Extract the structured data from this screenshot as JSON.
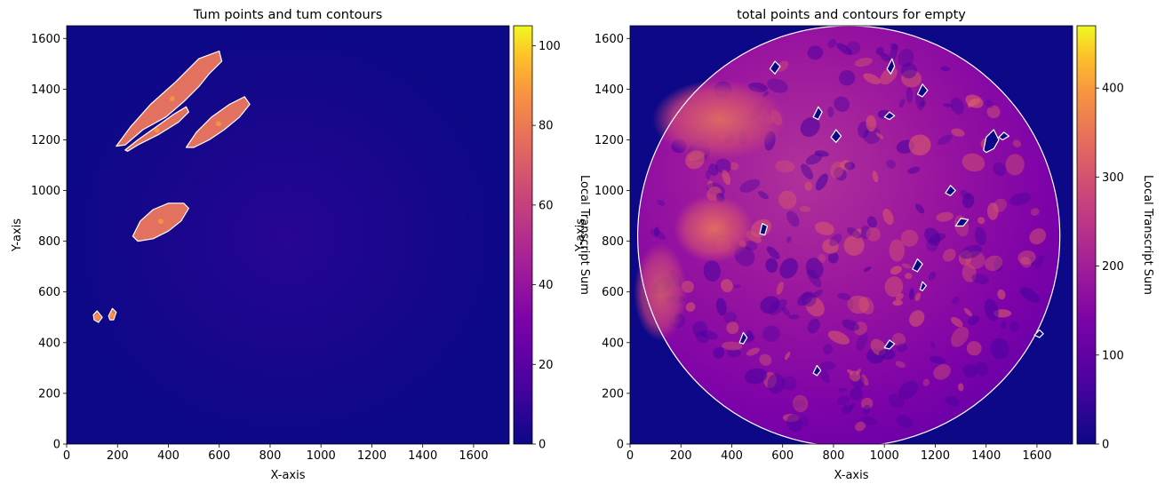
{
  "chart_data": [
    {
      "type": "heatmap",
      "title": "Tum points and tum contours",
      "xlabel": "X-axis",
      "ylabel": "Y-axis",
      "xlim": [
        0,
        1740
      ],
      "ylim": [
        0,
        1650
      ],
      "x_ticks": [
        0,
        200,
        400,
        600,
        800,
        1000,
        1200,
        1400,
        1600
      ],
      "y_ticks": [
        0,
        200,
        400,
        600,
        800,
        1000,
        1200,
        1400,
        1600
      ],
      "colormap": "plasma",
      "background_color": "#0d0887",
      "contour_color": "#ffffff",
      "colorbar": {
        "label": "Local Transcript Sum",
        "range": [
          0,
          105
        ],
        "ticks": [
          0,
          20,
          40,
          60,
          80,
          100
        ]
      },
      "contour_regions": [
        {
          "polygon": [
            [
              195,
              1175
            ],
            [
              250,
              1250
            ],
            [
              330,
              1340
            ],
            [
              430,
              1430
            ],
            [
              520,
              1520
            ],
            [
              600,
              1550
            ],
            [
              610,
              1510
            ],
            [
              560,
              1460
            ],
            [
              520,
              1410
            ],
            [
              460,
              1350
            ],
            [
              390,
              1290
            ],
            [
              300,
              1240
            ],
            [
              230,
              1180
            ]
          ]
        },
        {
          "polygon": [
            [
              230,
              1160
            ],
            [
              280,
              1200
            ],
            [
              350,
              1250
            ],
            [
              420,
              1300
            ],
            [
              470,
              1330
            ],
            [
              480,
              1310
            ],
            [
              440,
              1270
            ],
            [
              360,
              1220
            ],
            [
              280,
              1180
            ],
            [
              240,
              1155
            ]
          ]
        },
        {
          "polygon": [
            [
              470,
              1170
            ],
            [
              510,
              1230
            ],
            [
              570,
              1290
            ],
            [
              640,
              1340
            ],
            [
              700,
              1370
            ],
            [
              720,
              1340
            ],
            [
              680,
              1290
            ],
            [
              620,
              1240
            ],
            [
              560,
              1200
            ],
            [
              500,
              1170
            ]
          ]
        },
        {
          "polygon": [
            [
              260,
              820
            ],
            [
              290,
              880
            ],
            [
              340,
              925
            ],
            [
              400,
              950
            ],
            [
              460,
              950
            ],
            [
              480,
              930
            ],
            [
              450,
              880
            ],
            [
              400,
              840
            ],
            [
              340,
              810
            ],
            [
              280,
              800
            ]
          ]
        },
        {
          "polygon": [
            [
              105,
              510
            ],
            [
              120,
              525
            ],
            [
              140,
              500
            ],
            [
              125,
              480
            ],
            [
              108,
              490
            ]
          ]
        },
        {
          "polygon": [
            [
              165,
              505
            ],
            [
              180,
              535
            ],
            [
              195,
              520
            ],
            [
              185,
              490
            ],
            [
              170,
              490
            ]
          ]
        }
      ]
    },
    {
      "type": "heatmap",
      "title": "total points and contours for empty",
      "xlabel": "X-axis",
      "ylabel": "Y-axis",
      "xlim": [
        0,
        1740
      ],
      "ylim": [
        0,
        1650
      ],
      "x_ticks": [
        0,
        200,
        400,
        600,
        800,
        1000,
        1200,
        1400,
        1600
      ],
      "y_ticks": [
        0,
        200,
        400,
        600,
        800,
        1000,
        1200,
        1400,
        1600
      ],
      "colormap": "plasma",
      "background_color": "#0d0887",
      "contour_color": "#ffffff",
      "colorbar": {
        "label": "Local Transcript Sum",
        "range": [
          0,
          470
        ],
        "ticks": [
          0,
          100,
          200,
          300,
          400
        ]
      },
      "tissue_region": {
        "center": [
          860,
          820
        ],
        "radius": 830
      },
      "contour_regions": [
        {
          "polygon": [
            [
              550,
              1480
            ],
            [
              570,
              1510
            ],
            [
              590,
              1490
            ],
            [
              570,
              1460
            ]
          ]
        },
        {
          "polygon": [
            [
              1010,
              1480
            ],
            [
              1030,
              1520
            ],
            [
              1040,
              1490
            ],
            [
              1025,
              1460
            ]
          ]
        },
        {
          "polygon": [
            [
              1130,
              1380
            ],
            [
              1150,
              1420
            ],
            [
              1170,
              1395
            ],
            [
              1150,
              1370
            ]
          ]
        },
        {
          "polygon": [
            [
              720,
              1290
            ],
            [
              740,
              1330
            ],
            [
              755,
              1310
            ],
            [
              740,
              1280
            ]
          ]
        },
        {
          "polygon": [
            [
              1000,
              1290
            ],
            [
              1020,
              1310
            ],
            [
              1040,
              1295
            ],
            [
              1020,
              1280
            ]
          ]
        },
        {
          "polygon": [
            [
              790,
              1210
            ],
            [
              810,
              1240
            ],
            [
              830,
              1215
            ],
            [
              810,
              1190
            ]
          ]
        },
        {
          "polygon": [
            [
              1390,
              1160
            ],
            [
              1400,
              1210
            ],
            [
              1430,
              1240
            ],
            [
              1450,
              1200
            ],
            [
              1430,
              1165
            ],
            [
              1400,
              1150
            ]
          ]
        },
        {
          "polygon": [
            [
              1450,
              1210
            ],
            [
              1470,
              1230
            ],
            [
              1490,
              1215
            ],
            [
              1465,
              1200
            ]
          ]
        },
        {
          "polygon": [
            [
              1240,
              990
            ],
            [
              1260,
              1020
            ],
            [
              1280,
              1000
            ],
            [
              1260,
              980
            ]
          ]
        },
        {
          "polygon": [
            [
              1280,
              860
            ],
            [
              1300,
              890
            ],
            [
              1330,
              885
            ],
            [
              1310,
              860
            ]
          ]
        },
        {
          "polygon": [
            [
              510,
              830
            ],
            [
              520,
              870
            ],
            [
              540,
              860
            ],
            [
              530,
              825
            ]
          ]
        },
        {
          "polygon": [
            [
              1110,
              690
            ],
            [
              1130,
              730
            ],
            [
              1150,
              710
            ],
            [
              1130,
              680
            ]
          ]
        },
        {
          "polygon": [
            [
              1140,
              610
            ],
            [
              1150,
              640
            ],
            [
              1165,
              625
            ],
            [
              1150,
              605
            ]
          ]
        },
        {
          "polygon": [
            [
              430,
              400
            ],
            [
              445,
              440
            ],
            [
              460,
              420
            ],
            [
              445,
              395
            ]
          ]
        },
        {
          "polygon": [
            [
              1000,
              380
            ],
            [
              1020,
              410
            ],
            [
              1040,
              395
            ],
            [
              1020,
              375
            ]
          ]
        },
        {
          "polygon": [
            [
              720,
              280
            ],
            [
              735,
              310
            ],
            [
              750,
              290
            ],
            [
              735,
              270
            ]
          ]
        },
        {
          "polygon": [
            [
              1590,
              430
            ],
            [
              1610,
              450
            ],
            [
              1625,
              435
            ],
            [
              1610,
              420
            ]
          ]
        }
      ]
    }
  ]
}
